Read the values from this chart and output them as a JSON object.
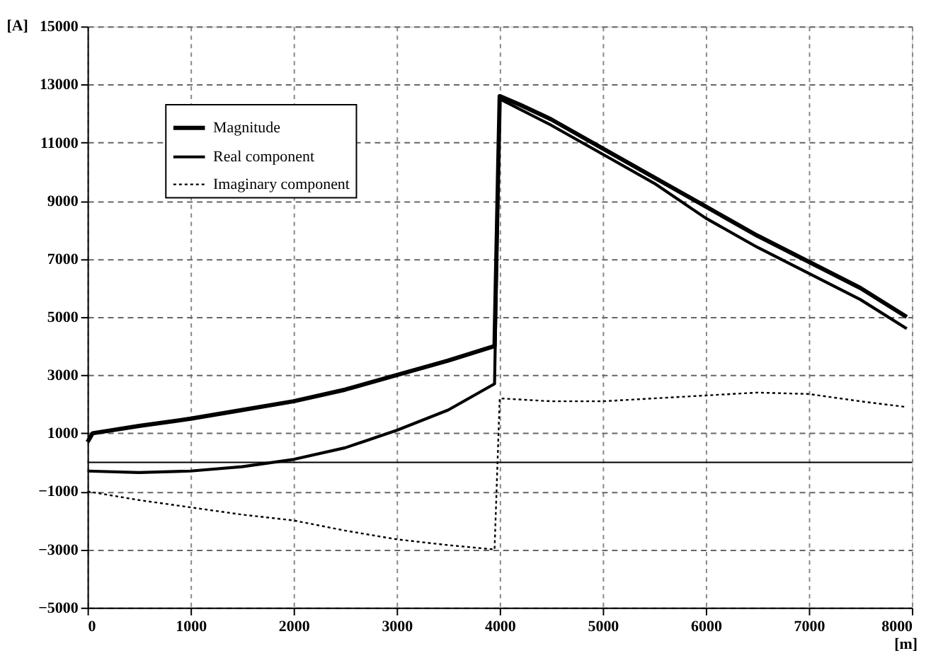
{
  "chart_data": {
    "type": "line",
    "xlabel": "[m]",
    "ylabel": "[A]",
    "xlim": [
      0,
      8000
    ],
    "xticks": [
      0,
      1000,
      2000,
      3000,
      4000,
      5000,
      6000,
      7000,
      8000
    ],
    "ylim": [
      -5000,
      15000
    ],
    "yticks": [
      -5000,
      -3000,
      -1000,
      1000,
      3000,
      5000,
      7000,
      9000,
      11000,
      13000,
      15000
    ],
    "grid": true,
    "legend": "top left",
    "marker": "none",
    "ref_lines": [
      {
        "axis": "y",
        "value": 0,
        "label": null,
        "color": "#000000",
        "line_style": "solid"
      }
    ],
    "series": [
      {
        "name": "Magnitude",
        "color": "#000000",
        "line_style": "solid",
        "x": [
          0,
          50,
          500,
          1000,
          1500,
          2000,
          2500,
          3000,
          3500,
          3950,
          4000,
          4200,
          4500,
          5000,
          5500,
          6000,
          6500,
          7000,
          7500,
          7950
        ],
        "values": [
          700,
          1000,
          1250,
          1500,
          1800,
          2100,
          2500,
          3000,
          3500,
          4000,
          12600,
          12300,
          11800,
          10800,
          9800,
          8800,
          7800,
          6900,
          6000,
          5000
        ]
      },
      {
        "name": "Real component",
        "color": "#000000",
        "line_style": "solid",
        "x": [
          0,
          500,
          1000,
          1500,
          2000,
          2500,
          3000,
          3500,
          3950,
          4000,
          4500,
          5000,
          5500,
          6000,
          6500,
          7000,
          7500,
          7950
        ],
        "values": [
          -300,
          -350,
          -300,
          -150,
          100,
          500,
          1100,
          1800,
          2700,
          12500,
          11600,
          10600,
          9600,
          8400,
          7400,
          6500,
          5600,
          4600
        ]
      },
      {
        "name": "Imaginary component",
        "color": "#000000",
        "line_style": "dotted",
        "x": [
          0,
          500,
          1000,
          1500,
          2000,
          2500,
          3000,
          3500,
          3950,
          4000,
          4500,
          5000,
          5500,
          6000,
          6500,
          7000,
          7500,
          7950
        ],
        "values": [
          -1000,
          -1300,
          -1550,
          -1800,
          -2000,
          -2350,
          -2650,
          -2850,
          -3000,
          2200,
          2100,
          2100,
          2200,
          2300,
          2400,
          2350,
          2100,
          1900
        ]
      }
    ]
  }
}
